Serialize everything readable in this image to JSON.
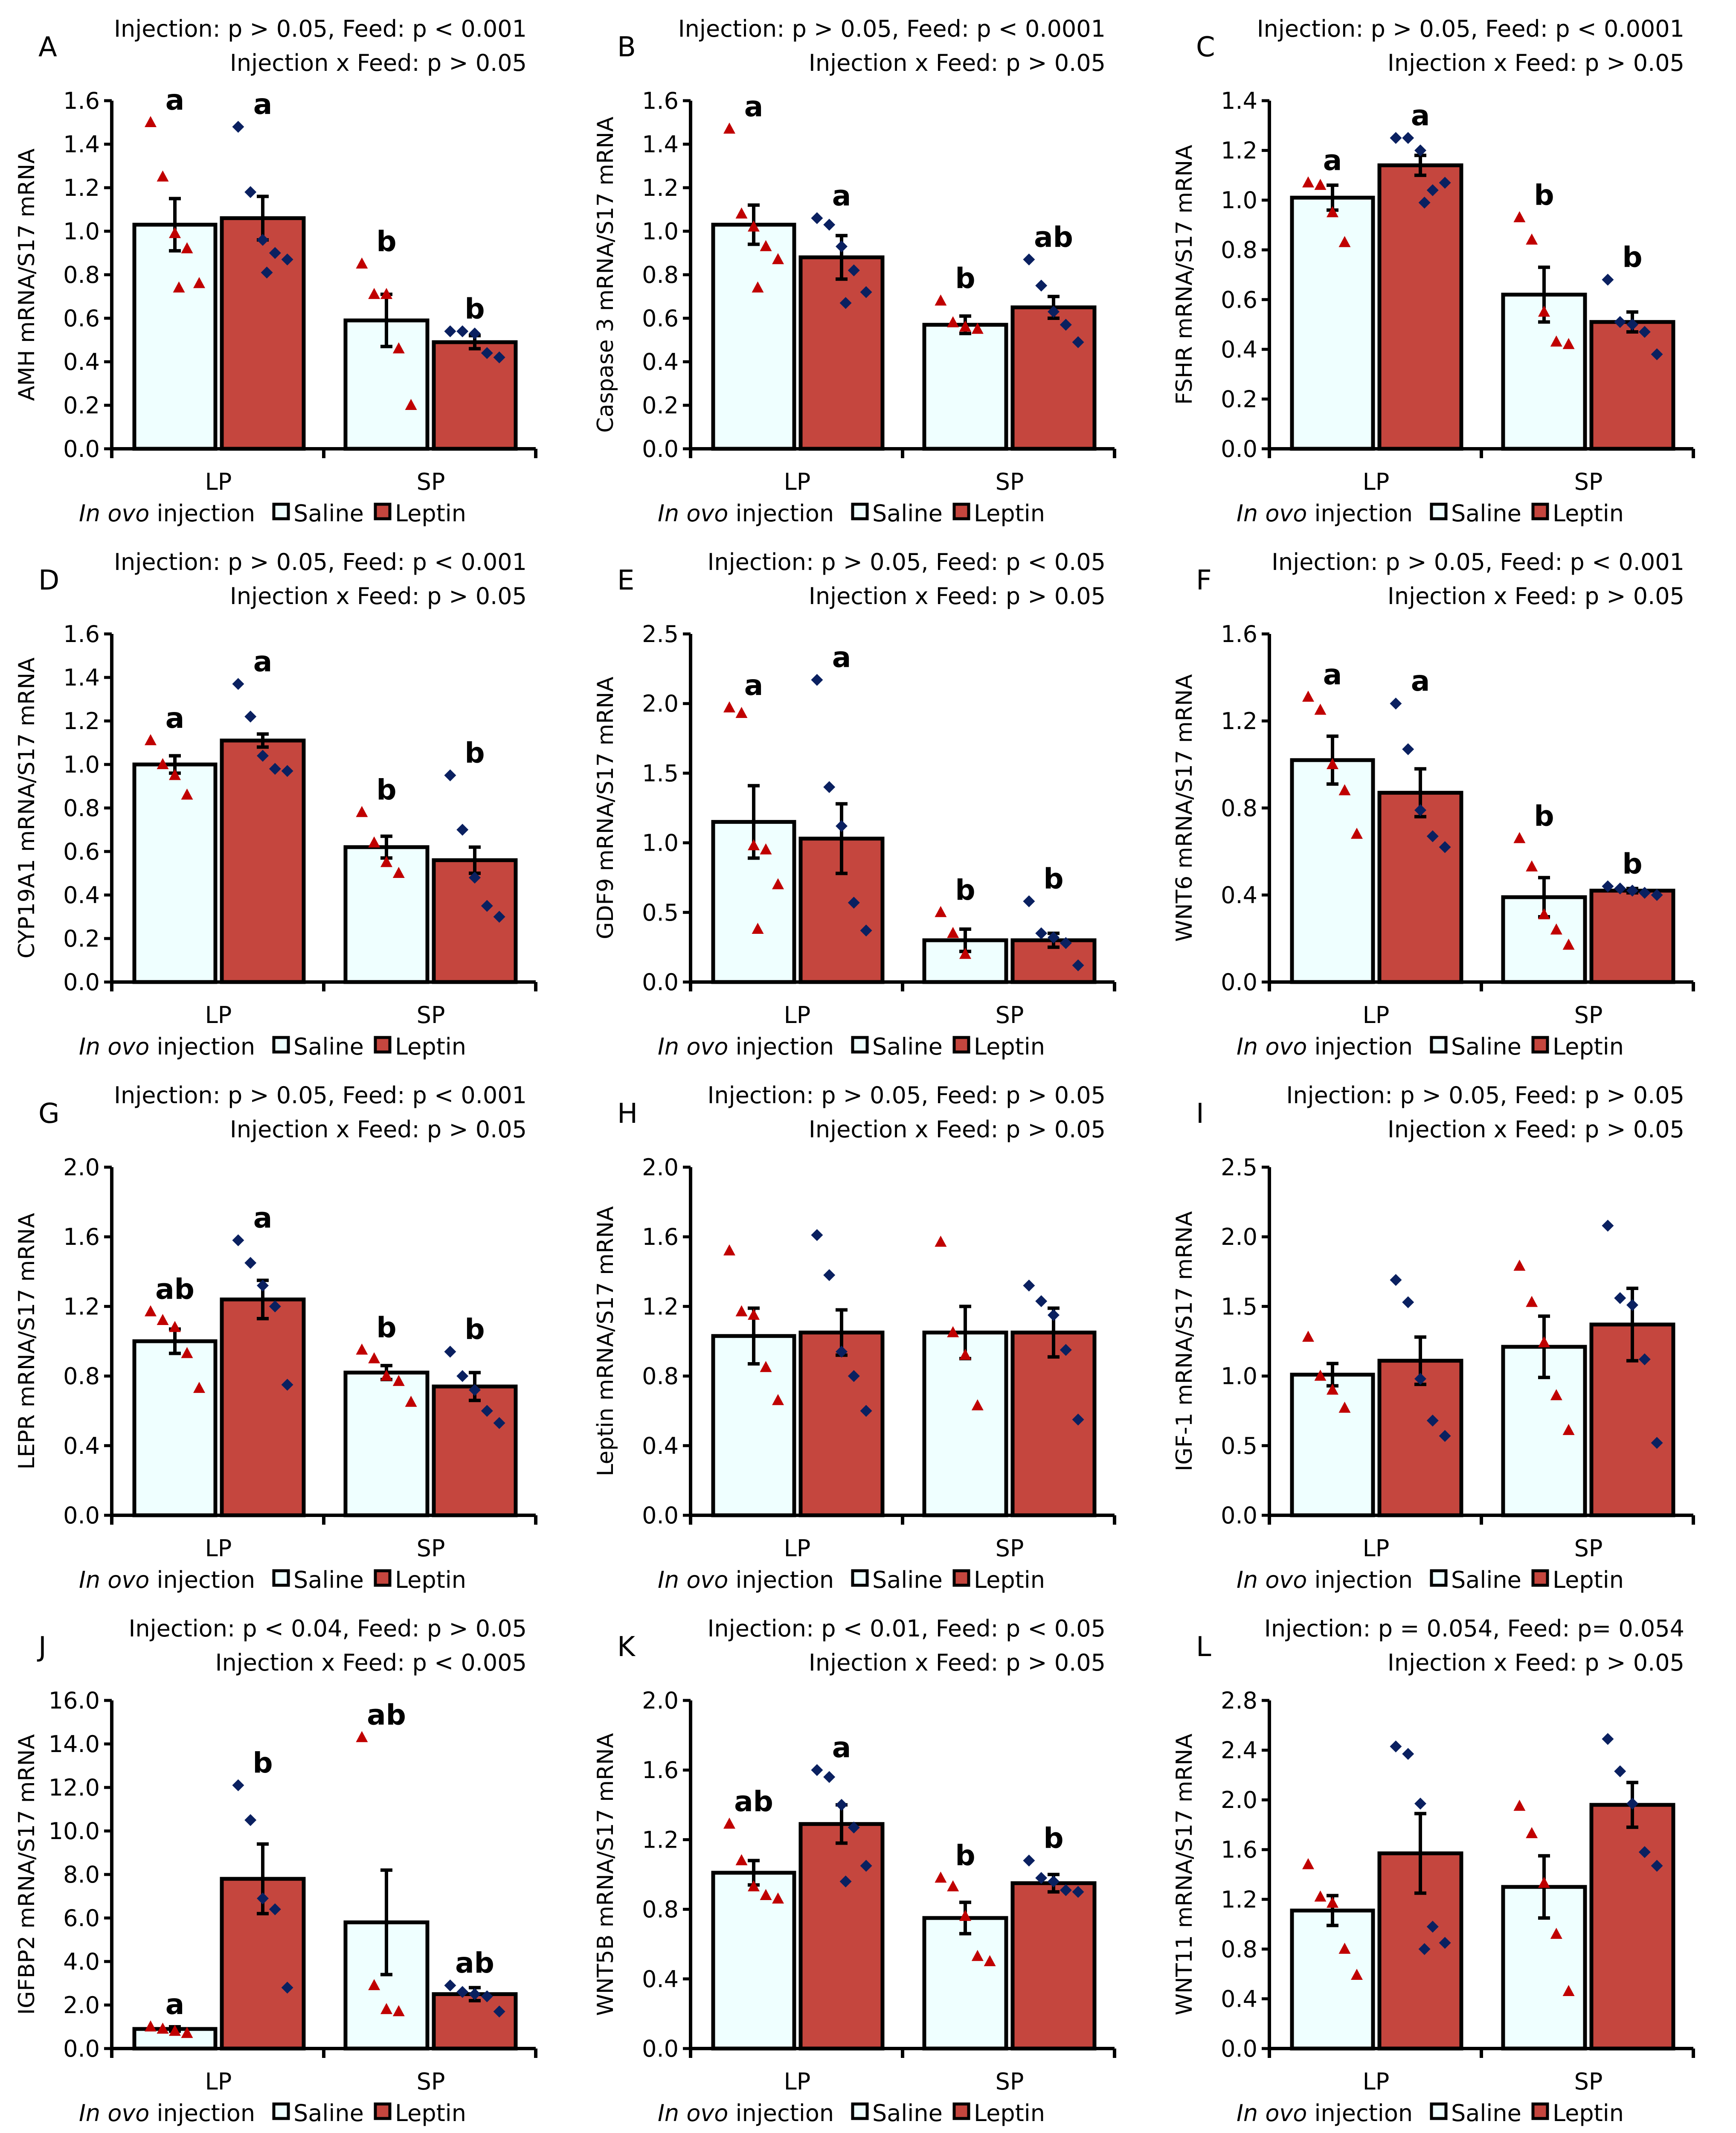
{
  "colors": {
    "saline": "#efffff",
    "leptin": "#c5463e",
    "saline_point": "#c00000",
    "leptin_point": "#0a2060",
    "axis": "#000000"
  },
  "legend": {
    "title_italic": "In ovo",
    "title_rest": " injection",
    "saline": "Saline",
    "leptin": "Leptin"
  },
  "categories": [
    "LP",
    "SP"
  ],
  "chart_data": [
    {
      "type": "bar",
      "panel": "A",
      "stats": [
        "Injection: p > 0.05, Feed: p < 0.001",
        "Injection x Feed: p > 0.05"
      ],
      "ylabel": "AMH mRNA/S17 mRNA",
      "ylim": [
        0,
        1.6
      ],
      "ystep": 0.2,
      "bars": [
        {
          "group": "LP",
          "series": "Saline",
          "mean": 1.03,
          "se": 0.12,
          "letter": "a",
          "points": [
            1.5,
            1.25,
            0.99,
            0.92,
            0.76,
            0.74
          ]
        },
        {
          "group": "LP",
          "series": "Leptin",
          "mean": 1.06,
          "se": 0.1,
          "letter": "a",
          "points": [
            1.48,
            1.18,
            0.96,
            0.9,
            0.87,
            0.81
          ]
        },
        {
          "group": "SP",
          "series": "Saline",
          "mean": 0.59,
          "se": 0.12,
          "letter": "b",
          "points": [
            0.85,
            0.71,
            0.71,
            0.46,
            0.2
          ]
        },
        {
          "group": "SP",
          "series": "Leptin",
          "mean": 0.49,
          "se": 0.03,
          "letter": "b",
          "points": [
            0.54,
            0.54,
            0.53,
            0.44,
            0.42
          ]
        }
      ]
    },
    {
      "type": "bar",
      "panel": "B",
      "stats": [
        "Injection: p > 0.05, Feed: p < 0.0001",
        "Injection x Feed: p > 0.05"
      ],
      "ylabel": "Caspase 3 mRNA/S17 mRNA",
      "ylim": [
        0,
        1.6
      ],
      "ystep": 0.2,
      "bars": [
        {
          "group": "LP",
          "series": "Saline",
          "mean": 1.03,
          "se": 0.09,
          "letter": "a",
          "points": [
            1.47,
            1.08,
            1.02,
            0.93,
            0.87,
            0.74
          ]
        },
        {
          "group": "LP",
          "series": "Leptin",
          "mean": 0.88,
          "se": 0.1,
          "letter": "a",
          "points": [
            1.06,
            1.03,
            0.93,
            0.82,
            0.72,
            0.67
          ]
        },
        {
          "group": "SP",
          "series": "Saline",
          "mean": 0.57,
          "se": 0.04,
          "letter": "b",
          "points": [
            0.68,
            0.58,
            0.56,
            0.55
          ]
        },
        {
          "group": "SP",
          "series": "Leptin",
          "mean": 0.65,
          "se": 0.05,
          "letter": "ab",
          "points": [
            0.87,
            0.75,
            0.63,
            0.57,
            0.49
          ]
        }
      ]
    },
    {
      "type": "bar",
      "panel": "C",
      "stats": [
        "Injection: p > 0.05, Feed: p < 0.0001",
        "Injection x Feed: p > 0.05"
      ],
      "ylabel": "FSHR mRNA/S17 mRNA",
      "ylim": [
        0,
        1.4
      ],
      "ystep": 0.2,
      "bars": [
        {
          "group": "LP",
          "series": "Saline",
          "mean": 1.01,
          "se": 0.05,
          "letter": "a",
          "points": [
            1.07,
            1.06,
            0.95,
            0.83
          ]
        },
        {
          "group": "LP",
          "series": "Leptin",
          "mean": 1.14,
          "se": 0.04,
          "letter": "a",
          "points": [
            1.25,
            1.25,
            1.2,
            1.04,
            1.07,
            0.99
          ]
        },
        {
          "group": "SP",
          "series": "Saline",
          "mean": 0.62,
          "se": 0.11,
          "letter": "b",
          "points": [
            0.93,
            0.84,
            0.55,
            0.43,
            0.42
          ]
        },
        {
          "group": "SP",
          "series": "Leptin",
          "mean": 0.51,
          "se": 0.04,
          "letter": "b",
          "points": [
            0.68,
            0.51,
            0.5,
            0.47,
            0.38
          ]
        }
      ]
    },
    {
      "type": "bar",
      "panel": "D",
      "stats": [
        "Injection: p > 0.05, Feed: p < 0.001",
        "Injection x Feed: p > 0.05"
      ],
      "ylabel": "CYP19A1 mRNA/S17 mRNA",
      "ylim": [
        0,
        1.6
      ],
      "ystep": 0.2,
      "bars": [
        {
          "group": "LP",
          "series": "Saline",
          "mean": 1.0,
          "se": 0.04,
          "letter": "a",
          "points": [
            1.11,
            1.0,
            0.95,
            0.86
          ]
        },
        {
          "group": "LP",
          "series": "Leptin",
          "mean": 1.11,
          "se": 0.03,
          "letter": "a",
          "points": [
            1.37,
            1.22,
            1.04,
            0.98,
            0.97
          ]
        },
        {
          "group": "SP",
          "series": "Saline",
          "mean": 0.62,
          "se": 0.05,
          "letter": "b",
          "points": [
            0.78,
            0.64,
            0.55,
            0.5
          ]
        },
        {
          "group": "SP",
          "series": "Leptin",
          "mean": 0.56,
          "se": 0.06,
          "letter": "b",
          "points": [
            0.95,
            0.7,
            0.48,
            0.35,
            0.3
          ]
        }
      ]
    },
    {
      "type": "bar",
      "panel": "E",
      "stats": [
        "Injection: p > 0.05, Feed: p < 0.05",
        "Injection x Feed: p > 0.05"
      ],
      "ylabel": "GDF9 mRNA/S17 mRNA",
      "ylim": [
        0,
        2.5
      ],
      "ystep": 0.5,
      "bars": [
        {
          "group": "LP",
          "series": "Saline",
          "mean": 1.15,
          "se": 0.26,
          "letter": "a",
          "points": [
            1.97,
            1.93,
            0.98,
            0.95,
            0.7,
            0.38
          ]
        },
        {
          "group": "LP",
          "series": "Leptin",
          "mean": 1.03,
          "se": 0.25,
          "letter": "a",
          "points": [
            2.17,
            1.4,
            1.12,
            0.57,
            0.37
          ]
        },
        {
          "group": "SP",
          "series": "Saline",
          "mean": 0.3,
          "se": 0.08,
          "letter": "b",
          "points": [
            0.5,
            0.35,
            0.2
          ]
        },
        {
          "group": "SP",
          "series": "Leptin",
          "mean": 0.3,
          "se": 0.05,
          "letter": "b",
          "points": [
            0.58,
            0.35,
            0.32,
            0.28,
            0.12
          ]
        }
      ]
    },
    {
      "type": "bar",
      "panel": "F",
      "stats": [
        "Injection: p > 0.05, Feed: p < 0.001",
        "Injection x Feed: p > 0.05"
      ],
      "ylabel": "WNT6 mRNA/S17 mRNA",
      "ylim": [
        0,
        1.6
      ],
      "ystep": 0.4,
      "bars": [
        {
          "group": "LP",
          "series": "Saline",
          "mean": 1.02,
          "se": 0.11,
          "letter": "a",
          "points": [
            1.31,
            1.25,
            1.0,
            0.88,
            0.68
          ]
        },
        {
          "group": "LP",
          "series": "Leptin",
          "mean": 0.87,
          "se": 0.11,
          "letter": "a",
          "points": [
            1.28,
            1.07,
            0.79,
            0.67,
            0.62
          ]
        },
        {
          "group": "SP",
          "series": "Saline",
          "mean": 0.39,
          "se": 0.09,
          "letter": "b",
          "points": [
            0.66,
            0.53,
            0.31,
            0.24,
            0.17
          ]
        },
        {
          "group": "SP",
          "series": "Leptin",
          "mean": 0.42,
          "se": 0.01,
          "letter": "b",
          "points": [
            0.44,
            0.43,
            0.42,
            0.41,
            0.4
          ]
        }
      ]
    },
    {
      "type": "bar",
      "panel": "G",
      "stats": [
        "Injection: p > 0.05, Feed: p < 0.001",
        "Injection x Feed: p > 0.05"
      ],
      "ylabel": "LEPR mRNA/S17 mRNA",
      "ylim": [
        0,
        2.0
      ],
      "ystep": 0.4,
      "bars": [
        {
          "group": "LP",
          "series": "Saline",
          "mean": 1.0,
          "se": 0.07,
          "letter": "ab",
          "points": [
            1.17,
            1.12,
            1.08,
            0.93,
            0.73
          ]
        },
        {
          "group": "LP",
          "series": "Leptin",
          "mean": 1.24,
          "se": 0.11,
          "letter": "a",
          "points": [
            1.58,
            1.45,
            1.32,
            1.2,
            0.75
          ]
        },
        {
          "group": "SP",
          "series": "Saline",
          "mean": 0.82,
          "se": 0.04,
          "letter": "b",
          "points": [
            0.95,
            0.9,
            0.8,
            0.77,
            0.65
          ]
        },
        {
          "group": "SP",
          "series": "Leptin",
          "mean": 0.74,
          "se": 0.08,
          "letter": "b",
          "points": [
            0.94,
            0.8,
            0.72,
            0.6,
            0.53
          ]
        }
      ]
    },
    {
      "type": "bar",
      "panel": "H",
      "stats": [
        "Injection: p > 0.05, Feed: p > 0.05",
        "Injection x Feed: p > 0.05"
      ],
      "ylabel": "Leptin mRNA/S17 mRNA",
      "ylim": [
        0,
        2.0
      ],
      "ystep": 0.4,
      "bars": [
        {
          "group": "LP",
          "series": "Saline",
          "mean": 1.03,
          "se": 0.16,
          "letter": "",
          "points": [
            1.52,
            1.17,
            1.15,
            0.85,
            0.66
          ]
        },
        {
          "group": "LP",
          "series": "Leptin",
          "mean": 1.05,
          "se": 0.13,
          "letter": "",
          "points": [
            1.61,
            1.38,
            0.94,
            0.8,
            0.6
          ]
        },
        {
          "group": "SP",
          "series": "Saline",
          "mean": 1.05,
          "se": 0.15,
          "letter": "",
          "points": [
            1.57,
            1.05,
            0.92,
            0.63
          ]
        },
        {
          "group": "SP",
          "series": "Leptin",
          "mean": 1.05,
          "se": 0.14,
          "letter": "",
          "points": [
            1.32,
            1.23,
            1.15,
            0.95,
            0.55
          ]
        }
      ]
    },
    {
      "type": "bar",
      "panel": "I",
      "stats": [
        "Injection: p > 0.05, Feed: p > 0.05",
        "Injection x Feed: p > 0.05"
      ],
      "ylabel": "IGF-1 mRNA/S17 mRNA",
      "ylim": [
        0,
        2.5
      ],
      "ystep": 0.5,
      "bars": [
        {
          "group": "LP",
          "series": "Saline",
          "mean": 1.01,
          "se": 0.08,
          "letter": "",
          "points": [
            1.28,
            1.0,
            0.9,
            0.77
          ]
        },
        {
          "group": "LP",
          "series": "Leptin",
          "mean": 1.11,
          "se": 0.17,
          "letter": "",
          "points": [
            1.69,
            1.53,
            0.98,
            0.68,
            0.57
          ]
        },
        {
          "group": "SP",
          "series": "Saline",
          "mean": 1.21,
          "se": 0.22,
          "letter": "",
          "points": [
            1.79,
            1.53,
            1.24,
            0.86,
            0.61
          ]
        },
        {
          "group": "SP",
          "series": "Leptin",
          "mean": 1.37,
          "se": 0.26,
          "letter": "",
          "points": [
            2.08,
            1.56,
            1.51,
            1.12,
            0.52
          ]
        }
      ]
    },
    {
      "type": "bar",
      "panel": "J",
      "stats": [
        "Injection: p < 0.04, Feed: p > 0.05",
        "Injection x Feed: p < 0.005"
      ],
      "ylabel": "IGFBP2 mRNA/S17 mRNA",
      "ylim": [
        0,
        16
      ],
      "ystep": 2,
      "bars": [
        {
          "group": "LP",
          "series": "Saline",
          "mean": 0.9,
          "se": 0.1,
          "letter": "a",
          "points": [
            1.0,
            0.9,
            0.8,
            0.7
          ]
        },
        {
          "group": "LP",
          "series": "Leptin",
          "mean": 7.8,
          "se": 1.6,
          "letter": "b",
          "points": [
            12.1,
            10.5,
            6.9,
            6.4,
            2.8
          ]
        },
        {
          "group": "SP",
          "series": "Saline",
          "mean": 5.8,
          "se": 2.4,
          "letter": "ab",
          "points": [
            14.3,
            2.9,
            1.8,
            1.7
          ]
        },
        {
          "group": "SP",
          "series": "Leptin",
          "mean": 2.5,
          "se": 0.3,
          "letter": "ab",
          "points": [
            2.9,
            2.6,
            2.5,
            2.4,
            1.7
          ]
        }
      ]
    },
    {
      "type": "bar",
      "panel": "K",
      "stats": [
        "Injection: p < 0.01, Feed: p < 0.05",
        "Injection x Feed: p > 0.05"
      ],
      "ylabel": "WNT5B mRNA/S17 mRNA",
      "ylim": [
        0,
        2.0
      ],
      "ystep": 0.4,
      "bars": [
        {
          "group": "LP",
          "series": "Saline",
          "mean": 1.01,
          "se": 0.07,
          "letter": "ab",
          "points": [
            1.29,
            1.08,
            0.93,
            0.88,
            0.86
          ]
        },
        {
          "group": "LP",
          "series": "Leptin",
          "mean": 1.29,
          "se": 0.11,
          "letter": "a",
          "points": [
            1.6,
            1.56,
            1.4,
            1.27,
            1.05,
            0.96
          ]
        },
        {
          "group": "SP",
          "series": "Saline",
          "mean": 0.75,
          "se": 0.09,
          "letter": "b",
          "points": [
            0.98,
            0.93,
            0.76,
            0.53,
            0.5
          ]
        },
        {
          "group": "SP",
          "series": "Leptin",
          "mean": 0.95,
          "se": 0.05,
          "letter": "b",
          "points": [
            1.08,
            0.98,
            0.96,
            0.91,
            0.9
          ]
        }
      ]
    },
    {
      "type": "bar",
      "panel": "L",
      "stats": [
        "Injection: p = 0.054, Feed: p= 0.054",
        "Injection x Feed: p > 0.05"
      ],
      "ylabel": "WNT11 mRNA/S17 mRNA",
      "ylim": [
        0,
        2.8
      ],
      "ystep": 0.4,
      "bars": [
        {
          "group": "LP",
          "series": "Saline",
          "mean": 1.11,
          "se": 0.12,
          "letter": "",
          "points": [
            1.48,
            1.22,
            1.17,
            0.8,
            0.59
          ]
        },
        {
          "group": "LP",
          "series": "Leptin",
          "mean": 1.57,
          "se": 0.32,
          "letter": "",
          "points": [
            2.43,
            2.37,
            1.97,
            0.98,
            0.85,
            0.8
          ]
        },
        {
          "group": "SP",
          "series": "Saline",
          "mean": 1.3,
          "se": 0.25,
          "letter": "",
          "points": [
            1.95,
            1.73,
            1.33,
            0.92,
            0.46
          ]
        },
        {
          "group": "SP",
          "series": "Leptin",
          "mean": 1.96,
          "se": 0.18,
          "letter": "",
          "points": [
            2.49,
            2.23,
            1.97,
            1.58,
            1.47
          ]
        }
      ]
    }
  ]
}
